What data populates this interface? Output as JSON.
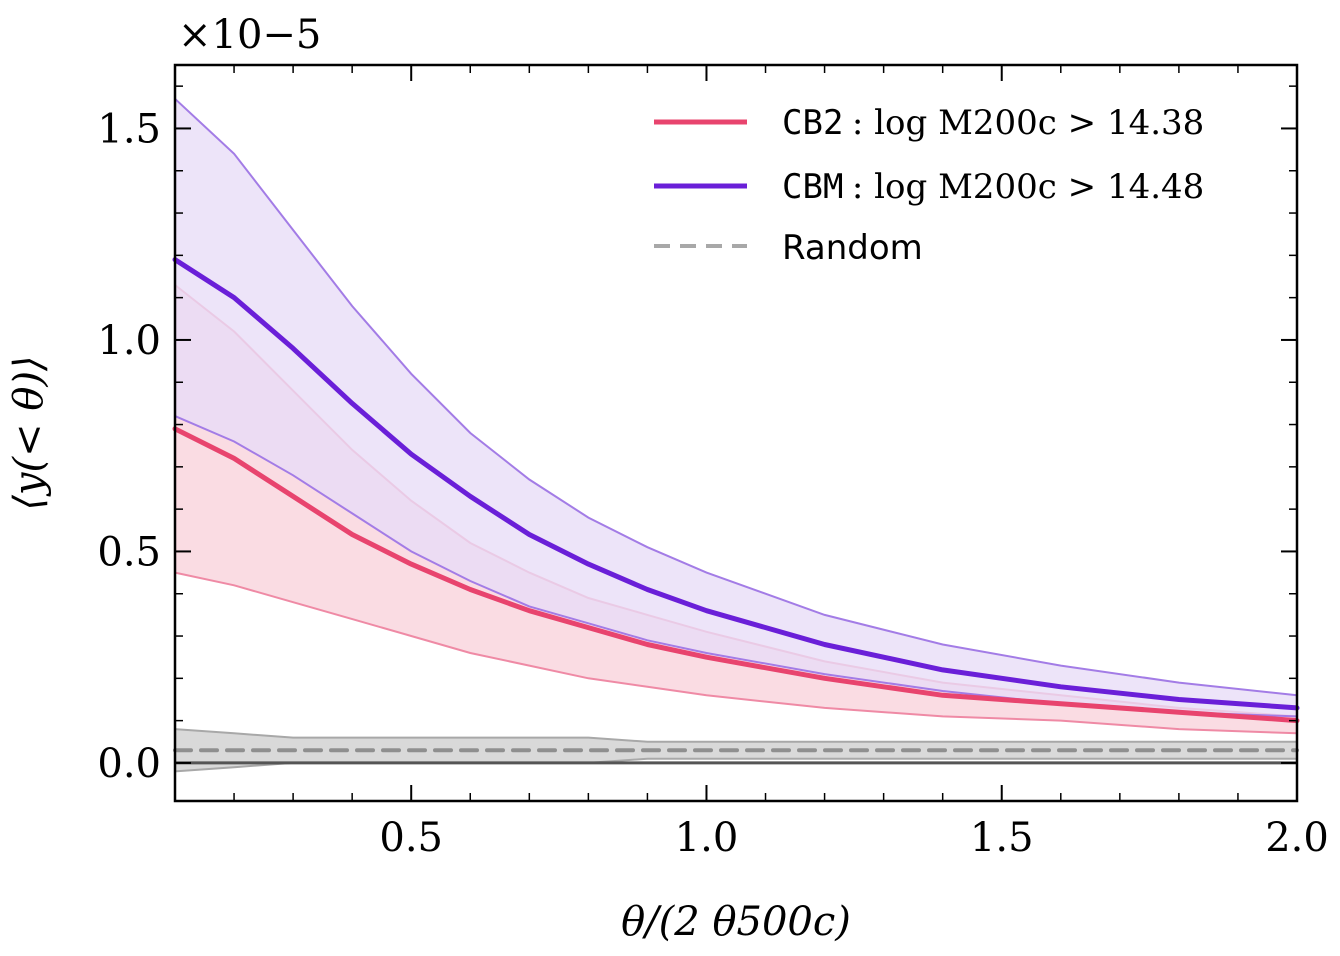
{
  "chart_data": {
    "type": "line",
    "title": "",
    "xlabel": "θ/(2 θ500c)",
    "ylabel": "⟨y(< θ)⟩",
    "y_multiplier": "×10−5",
    "xlim": [
      0.1,
      2.0
    ],
    "ylim": [
      -9e-07,
      1.65e-05
    ],
    "x_ticks": [
      0.5,
      1.0,
      1.5,
      2.0
    ],
    "x_tick_labels": [
      "0.5",
      "1.0",
      "1.5",
      "2.0"
    ],
    "y_ticks": [
      0.0,
      5e-06,
      1e-05,
      1.5e-05
    ],
    "y_tick_labels": [
      "0.0",
      "0.5",
      "1.0",
      "1.5"
    ],
    "grid": false,
    "legend_position": "top-right",
    "x": [
      0.1,
      0.2,
      0.3,
      0.4,
      0.5,
      0.6,
      0.7,
      0.8,
      0.9,
      1.0,
      1.2,
      1.4,
      1.6,
      1.8,
      2.0
    ],
    "series": [
      {
        "name_prefix": "CB2",
        "name_suffix": ": log M200c > 14.38",
        "color": "#e8446e",
        "fill": "#fadce3",
        "band_color": "#ef8aa5",
        "y": [
          7.9e-06,
          7.2e-06,
          6.3e-06,
          5.4e-06,
          4.7e-06,
          4.1e-06,
          3.6e-06,
          3.2e-06,
          2.8e-06,
          2.5e-06,
          2e-06,
          1.6e-06,
          1.4e-06,
          1.2e-06,
          1e-06
        ],
        "lower": [
          4.5e-06,
          4.2e-06,
          3.8e-06,
          3.4e-06,
          3e-06,
          2.6e-06,
          2.3e-06,
          2e-06,
          1.8e-06,
          1.6e-06,
          1.3e-06,
          1.1e-06,
          1e-06,
          8e-07,
          7e-07
        ],
        "upper": [
          1.13e-05,
          1.02e-05,
          8.8e-06,
          7.4e-06,
          6.2e-06,
          5.2e-06,
          4.5e-06,
          3.9e-06,
          3.5e-06,
          3.1e-06,
          2.4e-06,
          1.9e-06,
          1.6e-06,
          1.3e-06,
          1.1e-06
        ]
      },
      {
        "name_prefix": "CBM",
        "name_suffix": ": log M200c > 14.48",
        "color": "#6a1fd8",
        "fill": "#e8dcf7",
        "band_color": "#a37ce6",
        "y": [
          1.19e-05,
          1.1e-05,
          9.8e-06,
          8.5e-06,
          7.3e-06,
          6.3e-06,
          5.4e-06,
          4.7e-06,
          4.1e-06,
          3.6e-06,
          2.8e-06,
          2.2e-06,
          1.8e-06,
          1.5e-06,
          1.3e-06
        ],
        "lower": [
          8.2e-06,
          7.6e-06,
          6.8e-06,
          5.9e-06,
          5e-06,
          4.3e-06,
          3.7e-06,
          3.3e-06,
          2.9e-06,
          2.6e-06,
          2.1e-06,
          1.7e-06,
          1.4e-06,
          1.2e-06,
          1.1e-06
        ],
        "upper": [
          1.57e-05,
          1.44e-05,
          1.26e-05,
          1.08e-05,
          9.2e-06,
          7.8e-06,
          6.7e-06,
          5.8e-06,
          5.1e-06,
          4.5e-06,
          3.5e-06,
          2.8e-06,
          2.3e-06,
          1.9e-06,
          1.6e-06
        ]
      },
      {
        "name": "Random",
        "color": "#8f8f8f",
        "fill": "#d9d9d9",
        "band_color": "#a8a8a8",
        "dash": true,
        "y": [
          3e-07,
          3e-07,
          3e-07,
          3e-07,
          3e-07,
          3e-07,
          3e-07,
          3e-07,
          3e-07,
          3e-07,
          3e-07,
          3e-07,
          3e-07,
          3e-07,
          3e-07
        ],
        "lower": [
          -2e-07,
          -1e-07,
          0.0,
          0.0,
          0.0,
          0.0,
          0.0,
          0.0,
          1e-07,
          1e-07,
          1e-07,
          1e-07,
          1e-07,
          1e-07,
          1e-07
        ],
        "upper": [
          8e-07,
          7e-07,
          6e-07,
          6e-07,
          6e-07,
          6e-07,
          6e-07,
          6e-07,
          5e-07,
          5e-07,
          5e-07,
          5e-07,
          5e-07,
          5e-07,
          5e-07
        ]
      }
    ]
  }
}
